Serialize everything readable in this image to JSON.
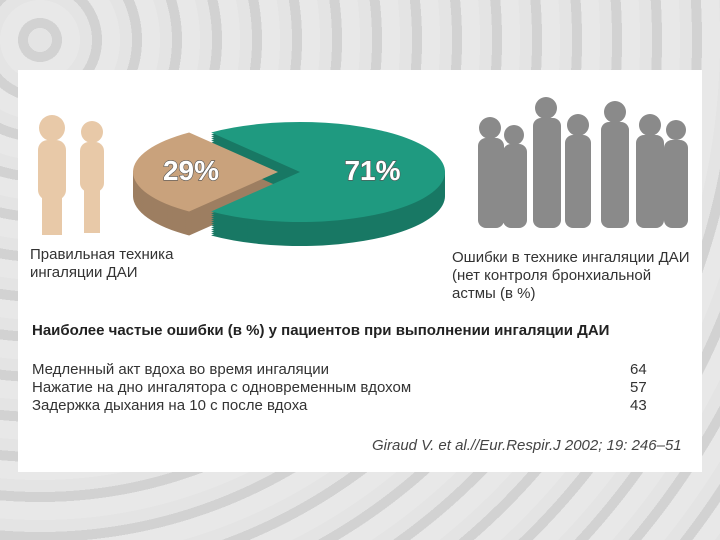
{
  "chart_data": {
    "type": "pie",
    "categories": [
      "Правильная техника ингаляции ДАИ",
      "Ошибки в технике ингаляции ДАИ (нет контроля бронхиальной астмы (в %)"
    ],
    "values": [
      29,
      71
    ],
    "value_labels": [
      "29%",
      "71%"
    ],
    "colors": [
      "#c9a27c",
      "#1f9a80"
    ]
  },
  "table": {
    "title": "Наиболее частые ошибки (в %) у пациентов при выполнении ингаляции ДАИ",
    "rows": [
      [
        "Медленный акт вдоха во время ингаляции",
        "64"
      ],
      [
        "Нажатие на дно ингалятора с одновременным вдохом",
        "57"
      ],
      [
        "Задержка дыхания на 10 с после вдоха",
        "43"
      ]
    ]
  },
  "source": "Giraud V. et al.//Eur.Respir.J 2002; 19: 246–51"
}
